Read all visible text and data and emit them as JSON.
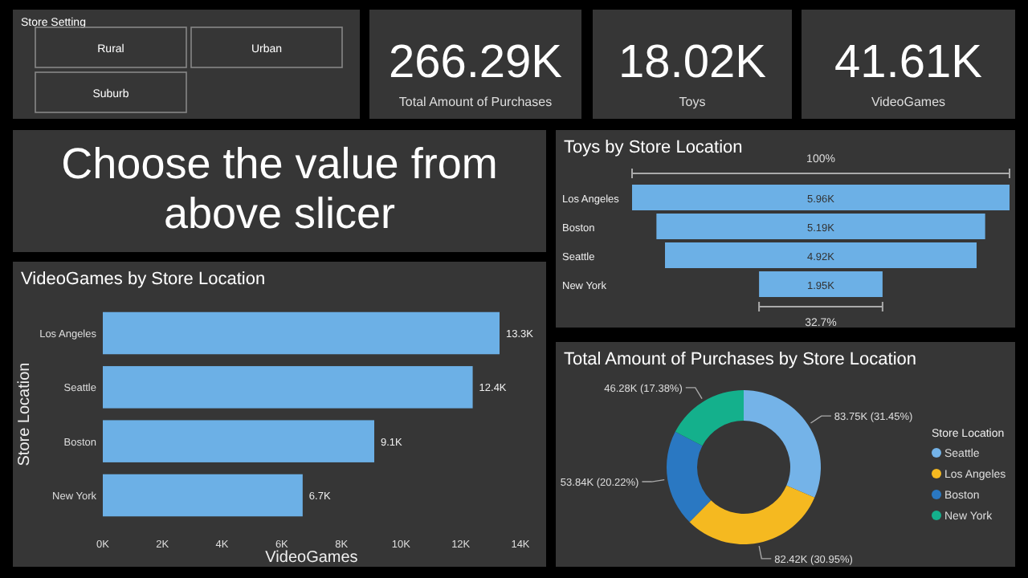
{
  "chart_data": [
    {
      "type": "other",
      "title": "Store Setting",
      "annotations": [
        "Rural",
        "Urban",
        "Suburb"
      ]
    },
    {
      "type": "other",
      "annotations": [
        "266.29K",
        "Total Amount of Purchases"
      ]
    },
    {
      "type": "other",
      "annotations": [
        "18.02K",
        "Toys"
      ]
    },
    {
      "type": "other",
      "annotations": [
        "41.61K",
        "VideoGames"
      ]
    },
    {
      "type": "other",
      "title": "Choose the value from above slicer"
    },
    {
      "type": "other",
      "title": "Toys by Store Location",
      "categories": [
        "Los Angeles",
        "Boston",
        "Seattle",
        "New York"
      ],
      "values": [
        5.96,
        5.19,
        4.92,
        1.95
      ],
      "value_labels": [
        "5.96K",
        "5.19K",
        "4.92K",
        "1.95K"
      ],
      "color": "#6cb0e6",
      "annotations": [
        "100%",
        "32.7%"
      ]
    },
    {
      "type": "bar",
      "orientation": "horizontal",
      "title": "VideoGames by Store Location",
      "categories": [
        "Los Angeles",
        "Seattle",
        "Boston",
        "New York"
      ],
      "values": [
        13.3,
        12.4,
        9.1,
        6.7
      ],
      "value_labels": [
        "13.3K",
        "12.4K",
        "9.1K",
        "6.7K"
      ],
      "color": "#6cb0e6",
      "xlim": [
        0,
        14
      ],
      "xticks": [
        {
          "value": 0,
          "label": "0K"
        },
        {
          "value": 2,
          "label": "2K"
        },
        {
          "value": 4,
          "label": "4K"
        },
        {
          "value": 6,
          "label": "6K"
        },
        {
          "value": 8,
          "label": "8K"
        },
        {
          "value": 10,
          "label": "10K"
        },
        {
          "value": 12,
          "label": "12K"
        },
        {
          "value": 14,
          "label": "14K"
        }
      ],
      "xlabel": "VideoGames",
      "ylabel": "Store Location"
    },
    {
      "type": "donut",
      "title": "Total Amount of Purchases by Store Location",
      "categories": [
        "Seattle",
        "Los Angeles",
        "Boston",
        "New York"
      ],
      "values": [
        31.45,
        30.95,
        20.22,
        17.38
      ],
      "value_labels": [
        "83.75K (31.45%)",
        "82.42K (30.95%)",
        "53.84K (20.22%)",
        "46.28K (17.38%)"
      ],
      "colors": [
        "#74b3e8",
        "#f5b920",
        "#2a78c2",
        "#14b08c"
      ],
      "legend": "right",
      "legend_title": "Store Location"
    }
  ]
}
